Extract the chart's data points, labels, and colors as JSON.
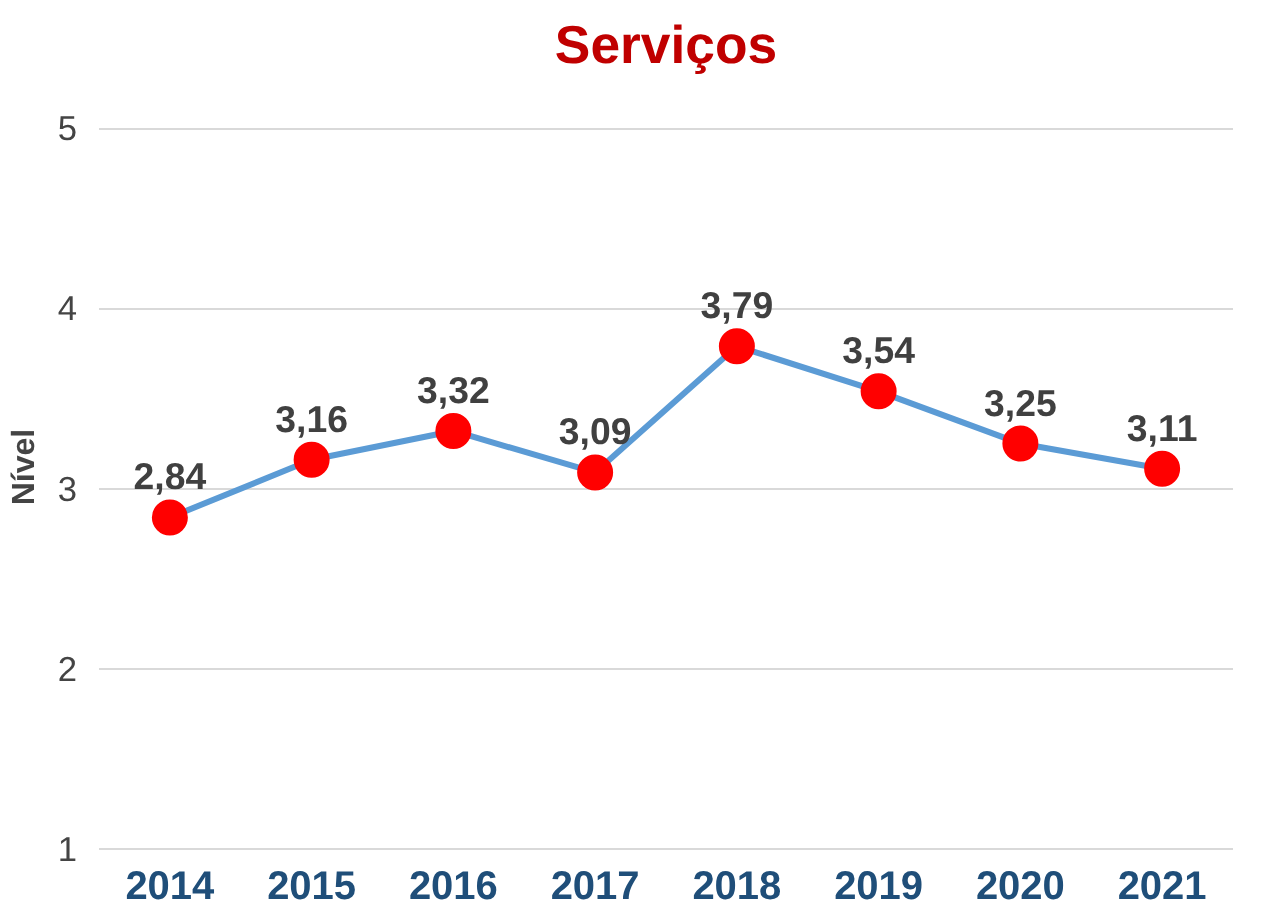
{
  "chart_data": {
    "type": "line",
    "title": "Serviços",
    "ylabel": "Nível",
    "categories": [
      "2014",
      "2015",
      "2016",
      "2017",
      "2018",
      "2019",
      "2020",
      "2021"
    ],
    "series": [
      {
        "color": "#5b9bd5",
        "colors": [
          "#ff0000",
          "#ff0000",
          "#ff0000",
          "#ff0000",
          "#ff0000",
          "#ff0000",
          "#ff0000",
          "#ff0000"
        ],
        "values": [
          2.84,
          3.16,
          3.32,
          3.09,
          3.79,
          3.54,
          3.25,
          3.11
        ],
        "value_labels": [
          "2,84",
          "3,16",
          "3,32",
          "3,09",
          "3,79",
          "3,54",
          "3,25",
          "3,11"
        ]
      }
    ],
    "ylim": [
      1,
      5
    ],
    "yticks": [
      1,
      2,
      3,
      4,
      5
    ],
    "grid": "y",
    "marker": "circle",
    "line_style": "solid"
  }
}
